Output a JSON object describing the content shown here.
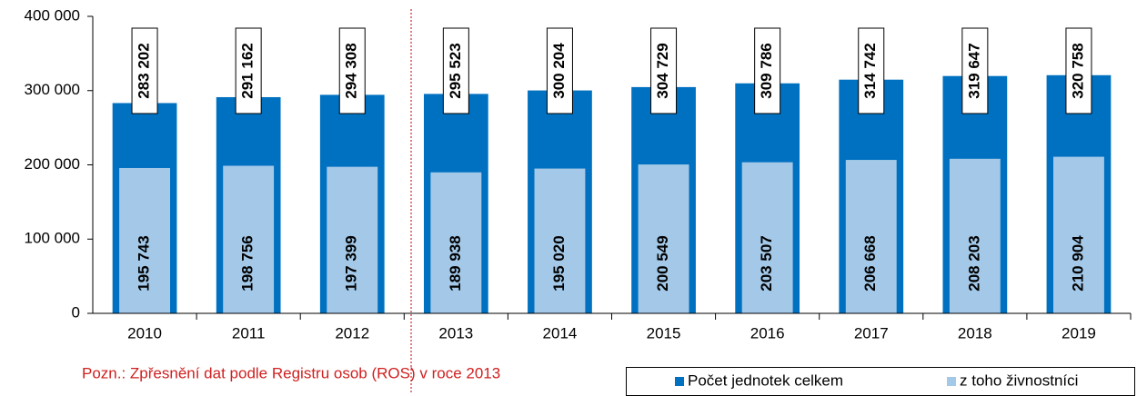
{
  "chart_data": {
    "type": "bar",
    "categories": [
      "2010",
      "2011",
      "2012",
      "2013",
      "2014",
      "2015",
      "2016",
      "2017",
      "2018",
      "2019"
    ],
    "series": [
      {
        "name": "Počet jednotek celkem",
        "color": "#0070c0",
        "values": [
          283202,
          291162,
          294308,
          295523,
          300204,
          304729,
          309786,
          314742,
          319647,
          320758
        ],
        "value_labels": [
          "283 202",
          "291 162",
          "294 308",
          "295 523",
          "300 204",
          "304 729",
          "309 786",
          "314 742",
          "319 647",
          "320 758"
        ]
      },
      {
        "name": "z toho živnostníci",
        "color": "#a3c8e8",
        "values": [
          195743,
          198756,
          197399,
          189938,
          195020,
          200549,
          203507,
          206668,
          208203,
          210904
        ],
        "value_labels": [
          "195 743",
          "198 756",
          "197 399",
          "189 938",
          "195 020",
          "200 549",
          "203 507",
          "206 668",
          "208 203",
          "210 904"
        ]
      }
    ],
    "ylim": [
      0,
      400000
    ],
    "yticks": [
      0,
      {
        "value": 100000,
        "label": "100 000"
      },
      {
        "value": 200000,
        "label": "200 000"
      },
      {
        "value": 300000,
        "label": "300 000"
      },
      {
        "value": 400000,
        "label": "400 000"
      }
    ],
    "grid": false,
    "annotation": "Pozn.: Zpřesnění dat podle Registru osob (ROS)  v roce 2013"
  }
}
